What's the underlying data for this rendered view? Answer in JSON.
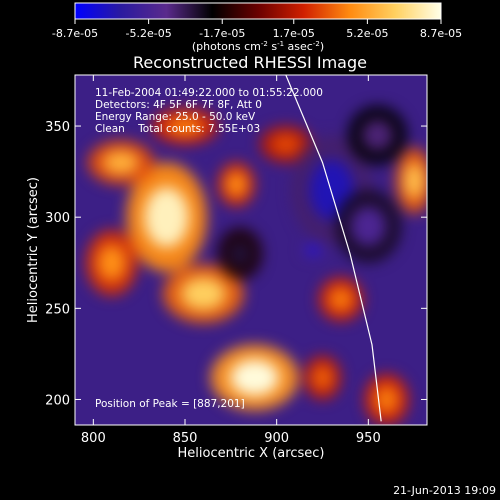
{
  "colorbar": {
    "ticks": [
      "-8.7e-05",
      "-5.2e-05",
      "-1.7e-05",
      "1.7e-05",
      "5.2e-05",
      "8.7e-05"
    ],
    "tick_values": [
      -8.7e-05,
      -5.2e-05,
      -1.7e-05,
      1.7e-05,
      5.2e-05,
      8.7e-05
    ],
    "units_prefix": "(photons cm",
    "units_exp1": "-2",
    "units_mid": " s",
    "units_exp2": "-1",
    "units_mid2": " asec",
    "units_exp3": "-2",
    "units_suffix": ")",
    "stops": [
      "#0000ff",
      "#2a1aa0",
      "#5a2a8c",
      "#000000",
      "#6a0000",
      "#d02000",
      "#ff8a10",
      "#ffd060",
      "#ffffe8"
    ]
  },
  "title": "Reconstructed RHESSI Image",
  "info": {
    "line1": "11-Feb-2004 01:49:22.000 to 01:55:22.000",
    "line2": "Detectors: 4F 5F 6F 7F 8F, Att 0",
    "line3": "Energy Range: 25.0 - 50.0 keV",
    "line4": "Clean    Total counts: 7.55E+03"
  },
  "peak": "Position of Peak = [887,201]",
  "footer_date": "21-Jun-2013 19:09",
  "chart_data": {
    "type": "heatmap",
    "title": "Reconstructed RHESSI Image",
    "xlabel": "Heliocentric X (arcsec)",
    "ylabel": "Heliocentric Y (arcsec)",
    "xlim": [
      790,
      982
    ],
    "ylim": [
      186,
      378
    ],
    "xticks": [
      800,
      850,
      900,
      950
    ],
    "yticks": [
      200,
      250,
      300,
      350
    ],
    "limb_points": [
      [
        905,
        378
      ],
      [
        925,
        330
      ],
      [
        940,
        280
      ],
      [
        952,
        230
      ],
      [
        957,
        188
      ]
    ],
    "clim": [
      -8.7e-05,
      8.7e-05
    ],
    "features": [
      {
        "x": 840,
        "y": 300,
        "rx": 22,
        "ry": 30,
        "value": 8e-05
      },
      {
        "x": 815,
        "y": 330,
        "rx": 18,
        "ry": 12,
        "value": 5.5e-05
      },
      {
        "x": 810,
        "y": 275,
        "rx": 14,
        "ry": 18,
        "value": 4.5e-05
      },
      {
        "x": 860,
        "y": 258,
        "rx": 22,
        "ry": 16,
        "value": 6.5e-05
      },
      {
        "x": 878,
        "y": 318,
        "rx": 10,
        "ry": 12,
        "value": 4.5e-05
      },
      {
        "x": 888,
        "y": 212,
        "rx": 24,
        "ry": 18,
        "value": 8.5e-05
      },
      {
        "x": 925,
        "y": 212,
        "rx": 10,
        "ry": 12,
        "value": 3.5e-05
      },
      {
        "x": 850,
        "y": 350,
        "rx": 18,
        "ry": 10,
        "value": 4e-05
      },
      {
        "x": 935,
        "y": 255,
        "rx": 12,
        "ry": 12,
        "value": 4e-05
      },
      {
        "x": 975,
        "y": 320,
        "rx": 10,
        "ry": 18,
        "value": 6e-05
      },
      {
        "x": 960,
        "y": 200,
        "rx": 12,
        "ry": 14,
        "value": 4e-05
      },
      {
        "x": 905,
        "y": 340,
        "rx": 14,
        "ry": 10,
        "value": 3e-05
      },
      {
        "x": 930,
        "y": 315,
        "rx": 22,
        "ry": 30,
        "value": -7e-05
      },
      {
        "x": 950,
        "y": 295,
        "rx": 18,
        "ry": 20,
        "value": -5e-05
      },
      {
        "x": 920,
        "y": 282,
        "rx": 6,
        "ry": 4,
        "value": -8.7e-05
      },
      {
        "x": 955,
        "y": 345,
        "rx": 16,
        "ry": 16,
        "value": -4e-05
      },
      {
        "x": 880,
        "y": 280,
        "rx": 12,
        "ry": 14,
        "value": -3e-05
      }
    ]
  }
}
